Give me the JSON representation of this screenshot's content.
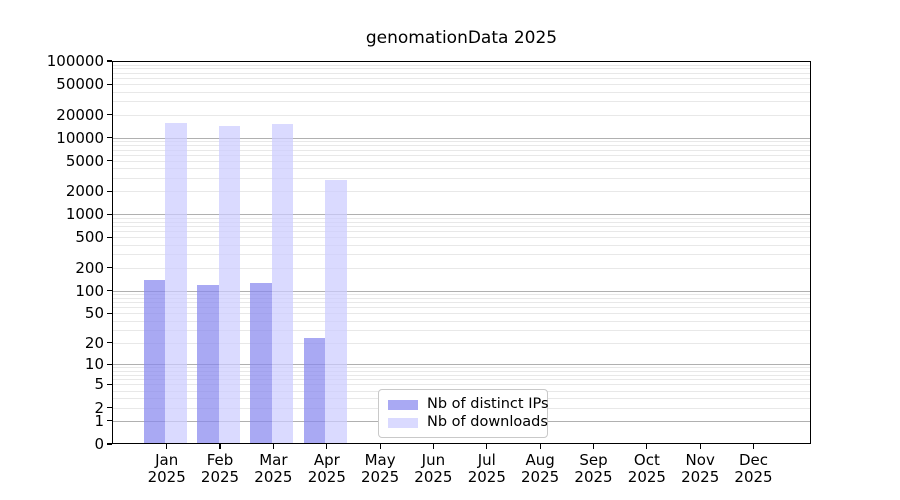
{
  "chart_data": {
    "type": "bar",
    "title": "genomationData 2025",
    "year_label": "2025",
    "months": [
      "Jan",
      "Feb",
      "Mar",
      "Apr",
      "May",
      "Jun",
      "Jul",
      "Aug",
      "Sep",
      "Oct",
      "Nov",
      "Dec"
    ],
    "x_categories": [
      "Jan 2025",
      "Feb 2025",
      "Mar 2025",
      "Apr 2025",
      "May 2025",
      "Jun 2025",
      "Jul 2025",
      "Aug 2025",
      "Sep 2025",
      "Oct 2025",
      "Nov 2025",
      "Dec 2025"
    ],
    "series": [
      {
        "name": "Nb of distinct IPs",
        "color": "rgba(136,136,238,0.72)",
        "values": [
          137,
          120,
          124,
          23,
          0,
          0,
          0,
          0,
          0,
          0,
          0,
          0
        ]
      },
      {
        "name": "Nb of downloads",
        "color": "rgba(204,204,255,0.72)",
        "values": [
          15500,
          14000,
          15200,
          2800,
          0,
          0,
          0,
          0,
          0,
          0,
          0,
          0
        ]
      }
    ],
    "y_scale": "log10(1+v)",
    "ylim": [
      0,
      100000
    ],
    "y_ticks": [
      0,
      1,
      2,
      5,
      10,
      20,
      50,
      100,
      200,
      500,
      1000,
      2000,
      5000,
      10000,
      20000,
      50000,
      100000
    ],
    "grid": {
      "major_values": [
        1,
        10,
        100,
        1000,
        10000
      ],
      "minor_rule": "2..9 per decade up to 90000",
      "major_color": "#b0b0b0",
      "minor_color": "#e8e8e8"
    },
    "legend_position": "lower center"
  }
}
